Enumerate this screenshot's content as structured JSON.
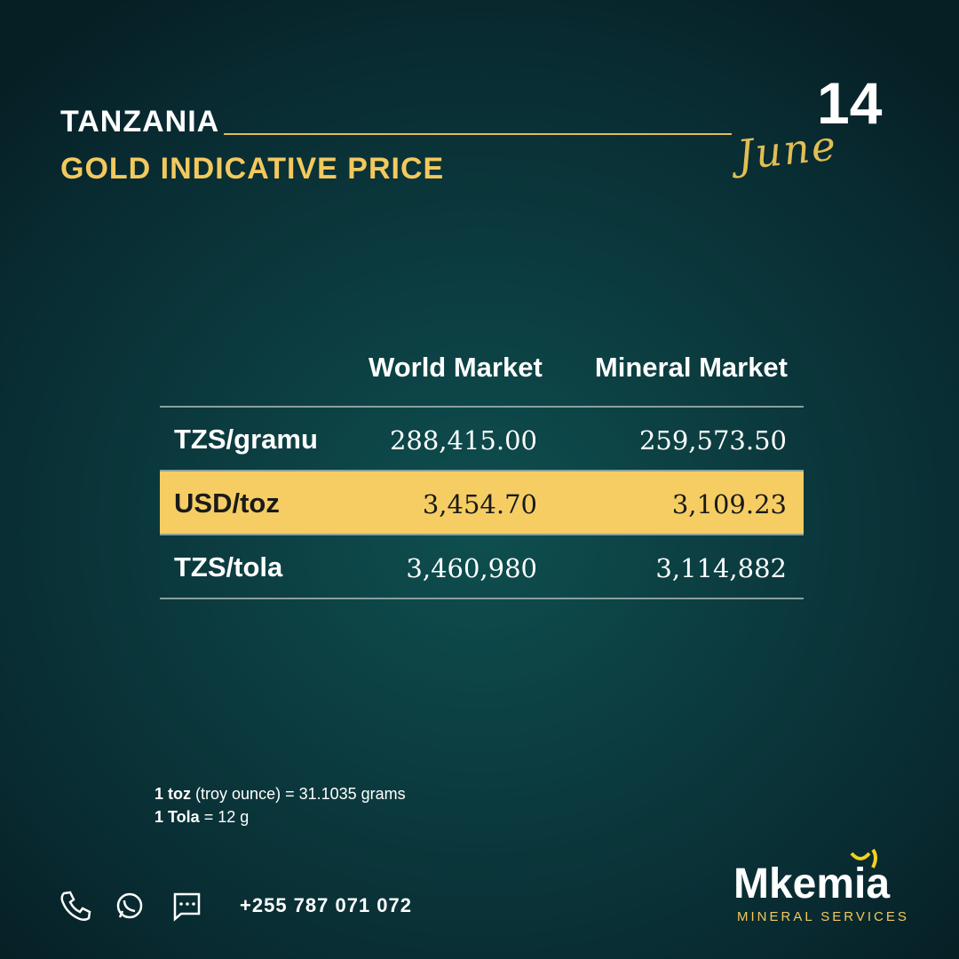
{
  "header": {
    "country": "TANZANIA",
    "title": "GOLD INDICATIVE PRICE",
    "day": "14",
    "month": "June"
  },
  "table": {
    "columns": [
      "World Market",
      "Mineral Market"
    ],
    "rows": [
      [
        "TZS/gramu",
        "288,415.00",
        "259,573.50"
      ],
      [
        "USD/toz",
        "3,454.70",
        "3,109.23"
      ],
      [
        "TZS/tola",
        "3,460,980",
        "3,114,882"
      ]
    ]
  },
  "notes": [
    {
      "term": "1 toz",
      "text": "(troy ounce) = 31.1035 grams"
    },
    {
      "term": "1 Tola",
      "text": "= 12 g"
    }
  ],
  "footer": {
    "phone": "+255 787 071 072",
    "brand": "Mkemia",
    "brand_subtitle": "MINERAL SERVICES"
  }
}
